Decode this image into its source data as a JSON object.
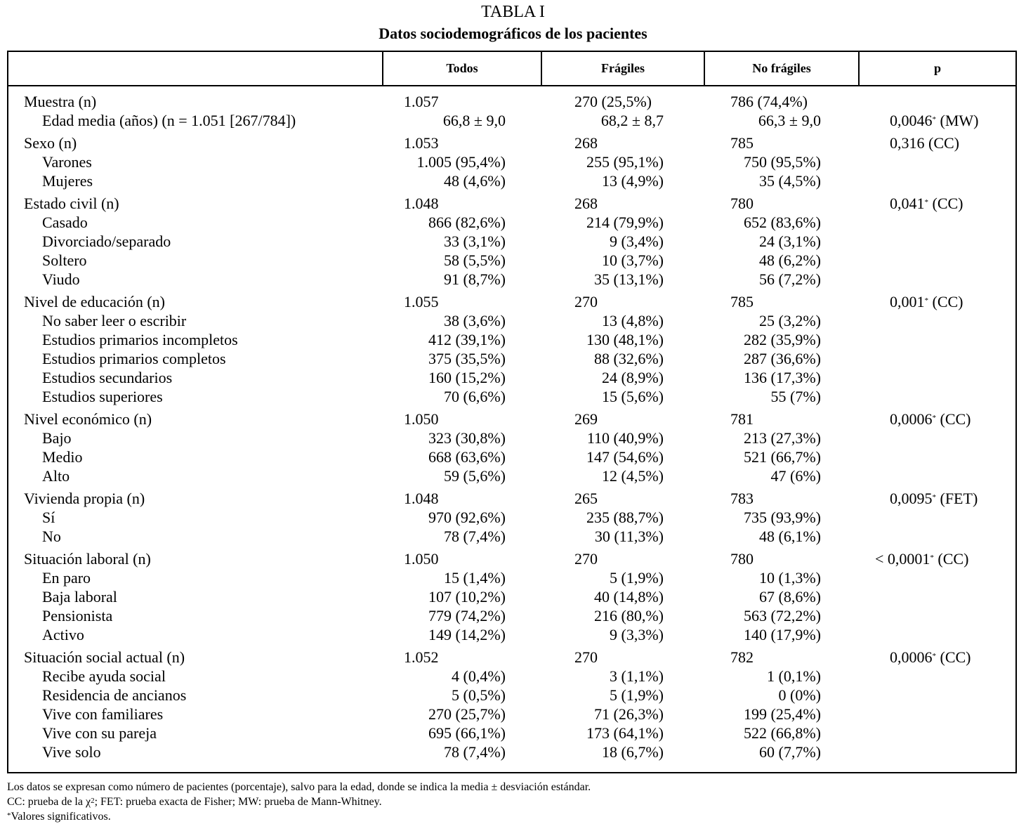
{
  "header": {
    "title": "TABLA I",
    "subtitle": "Datos sociodemográficos de los pacientes"
  },
  "table": {
    "columns": [
      "Todos",
      "Frágiles",
      "No frágiles",
      "p"
    ],
    "groups": [
      {
        "label": "Muestra (n)",
        "todos": "1.057",
        "fragiles": "270 (25,5%)",
        "no_fragiles": "786 (74,4%)",
        "rows": [
          {
            "label": "Edad media (años) (n = 1.051 [267/784])",
            "todos": "66,8 ± 9,0",
            "fragiles": "68,2 ± 8,7",
            "no_fragiles": "66,3 ± 9,0",
            "p": {
              "value": "0,0046",
              "sup": "*",
              "test": "(MW)"
            }
          }
        ]
      },
      {
        "label": "Sexo (n)",
        "todos": "1.053",
        "fragiles": "268",
        "no_fragiles": "785",
        "p": {
          "value": "0,316",
          "test": "(CC)"
        },
        "rows": [
          {
            "label": "Varones",
            "todos": "1.005 (95,4%)",
            "fragiles": "255 (95,1%)",
            "no_fragiles": "750 (95,5%)"
          },
          {
            "label": "Mujeres",
            "todos": "48 (4,6%)",
            "fragiles": "13 (4,9%)",
            "no_fragiles": "35 (4,5%)"
          }
        ]
      },
      {
        "label": "Estado civil (n)",
        "todos": "1.048",
        "fragiles": "268",
        "no_fragiles": "780",
        "p": {
          "value": "0,041",
          "sup": "*",
          "test": "(CC)"
        },
        "rows": [
          {
            "label": "Casado",
            "todos": "866 (82,6%)",
            "fragiles": "214 (79,9%)",
            "no_fragiles": "652 (83,6%)"
          },
          {
            "label": "Divorciado/separado",
            "todos": "33 (3,1%)",
            "fragiles": "9 (3,4%)",
            "no_fragiles": "24 (3,1%)"
          },
          {
            "label": "Soltero",
            "todos": "58 (5,5%)",
            "fragiles": "10 (3,7%)",
            "no_fragiles": "48 (6,2%)"
          },
          {
            "label": "Viudo",
            "todos": "91 (8,7%)",
            "fragiles": "35 (13,1%)",
            "no_fragiles": "56 (7,2%)"
          }
        ]
      },
      {
        "label": "Nivel de educación (n)",
        "todos": "1.055",
        "fragiles": "270",
        "no_fragiles": "785",
        "p": {
          "value": "0,001",
          "sup": "*",
          "test": "(CC)"
        },
        "rows": [
          {
            "label": "No saber leer o escribir",
            "todos": "38 (3,6%)",
            "fragiles": "13 (4,8%)",
            "no_fragiles": "25 (3,2%)"
          },
          {
            "label": "Estudios primarios incompletos",
            "todos": "412 (39,1%)",
            "fragiles": "130 (48,1%)",
            "no_fragiles": "282 (35,9%)"
          },
          {
            "label": "Estudios primarios completos",
            "todos": "375 (35,5%)",
            "fragiles": "88 (32,6%)",
            "no_fragiles": "287 (36,6%)"
          },
          {
            "label": "Estudios secundarios",
            "todos": "160 (15,2%)",
            "fragiles": "24 (8,9%)",
            "no_fragiles": "136 (17,3%)"
          },
          {
            "label": "Estudios superiores",
            "todos": "70 (6,6%)",
            "fragiles": "15 (5,6%)",
            "no_fragiles": "55 (7%)"
          }
        ]
      },
      {
        "label": "Nivel económico (n)",
        "todos": "1.050",
        "fragiles": "269",
        "no_fragiles": "781",
        "p": {
          "value": "0,0006",
          "sup": "*",
          "test": "(CC)"
        },
        "rows": [
          {
            "label": "Bajo",
            "todos": "323 (30,8%)",
            "fragiles": "110 (40,9%)",
            "no_fragiles": "213 (27,3%)"
          },
          {
            "label": "Medio",
            "todos": "668 (63,6%)",
            "fragiles": "147 (54,6%)",
            "no_fragiles": "521 (66,7%)"
          },
          {
            "label": "Alto",
            "todos": "59 (5,6%)",
            "fragiles": "12 (4,5%)",
            "no_fragiles": "47 (6%)"
          }
        ]
      },
      {
        "label": "Vivienda propia (n)",
        "todos": "1.048",
        "fragiles": "265",
        "no_fragiles": "783",
        "p": {
          "value": "0,0095",
          "sup": "*",
          "test": "(FET)"
        },
        "rows": [
          {
            "label": "Sí",
            "todos": "970 (92,6%)",
            "fragiles": "235 (88,7%)",
            "no_fragiles": "735 (93,9%)"
          },
          {
            "label": "No",
            "todos": "78 (7,4%)",
            "fragiles": "30 (11,3%)",
            "no_fragiles": "48 (6,1%)"
          }
        ]
      },
      {
        "label": "Situación laboral (n)",
        "todos": "1.050",
        "fragiles": "270",
        "no_fragiles": "780",
        "p": {
          "value": "< 0,0001",
          "sup": "*",
          "test": "(CC)"
        },
        "rows": [
          {
            "label": "En paro",
            "todos": "15 (1,4%)",
            "fragiles": "5 (1,9%)",
            "no_fragiles": "10 (1,3%)"
          },
          {
            "label": "Baja laboral",
            "todos": "107 (10,2%)",
            "fragiles": "40 (14,8%)",
            "no_fragiles": "67 (8,6%)"
          },
          {
            "label": "Pensionista",
            "todos": "779 (74,2%)",
            "fragiles": "216 (80,%)",
            "no_fragiles": "563 (72,2%)"
          },
          {
            "label": "Activo",
            "todos": "149 (14,2%)",
            "fragiles": "9 (3,3%)",
            "no_fragiles": "140 (17,9%)"
          }
        ]
      },
      {
        "label": "Situación social actual (n)",
        "todos": "1.052",
        "fragiles": "270",
        "no_fragiles": "782",
        "p": {
          "value": "0,0006",
          "sup": "*",
          "test": "(CC)"
        },
        "rows": [
          {
            "label": "Recibe ayuda social",
            "todos": "4 (0,4%)",
            "fragiles": "3 (1,1%)",
            "no_fragiles": "1 (0,1%)"
          },
          {
            "label": "Residencia de ancianos",
            "todos": "5 (0,5%)",
            "fragiles": "5 (1,9%)",
            "no_fragiles": "0 (0%)"
          },
          {
            "label": "Vive con familiares",
            "todos": "270 (25,7%)",
            "fragiles": "71 (26,3%)",
            "no_fragiles": "199 (25,4%)"
          },
          {
            "label": "Vive con su pareja",
            "todos": "695 (66,1%)",
            "fragiles": "173 (64,1%)",
            "no_fragiles": "522 (66,8%)"
          },
          {
            "label": "Vive solo",
            "todos": "78 (7,4%)",
            "fragiles": "18 (6,7%)",
            "no_fragiles": "60 (7,7%)"
          }
        ]
      }
    ]
  },
  "footnotes": [
    "Los datos se expresan como número de pacientes (porcentaje), salvo para la edad, donde se indica la media ± desviación estándar.",
    {
      "text": "CC: prueba de la χ",
      "sup": "2",
      "rest": "; FET: prueba exacta de Fisher; MW: prueba de Mann-Whitney."
    },
    {
      "sup": "*",
      "text": "Valores significativos."
    }
  ]
}
